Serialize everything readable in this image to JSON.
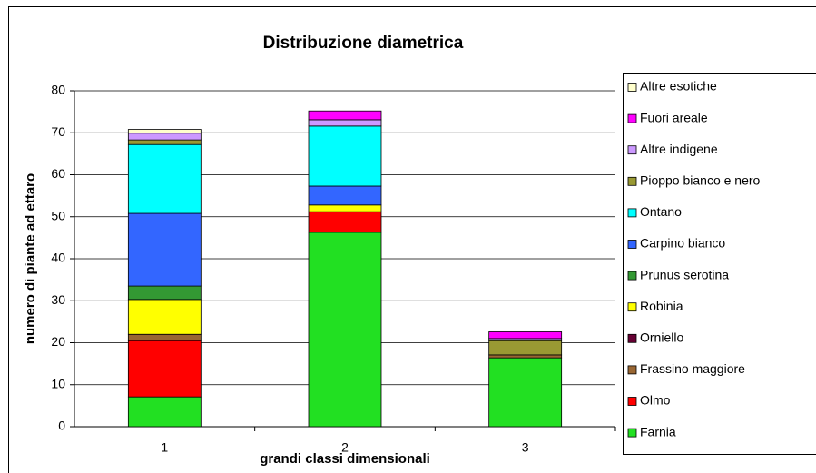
{
  "chart_data": {
    "type": "stacked_bar",
    "title": "Distribuzione diametrica",
    "x_label": "grandi classi dimensionali",
    "y_label": "numero di piante ad ettaro",
    "categories": [
      "1",
      "2",
      "3"
    ],
    "series": [
      {
        "name": "Farnia",
        "color": "#22e022",
        "values": [
          7.1,
          46.3,
          16.4
        ]
      },
      {
        "name": "Olmo",
        "color": "#ff0000",
        "values": [
          13.4,
          4.9,
          0
        ]
      },
      {
        "name": "Frassino maggiore",
        "color": "#996633",
        "values": [
          1.5,
          0,
          0.7
        ]
      },
      {
        "name": "Orniello",
        "color": "#660033",
        "values": [
          0,
          0,
          0
        ]
      },
      {
        "name": "Robinia",
        "color": "#ffff00",
        "values": [
          8.3,
          1.6,
          0
        ]
      },
      {
        "name": "Prunus serotina",
        "color": "#339933",
        "values": [
          3.2,
          0,
          0
        ]
      },
      {
        "name": "Carpino bianco",
        "color": "#3366ff",
        "values": [
          17.3,
          4.5,
          0
        ]
      },
      {
        "name": "Ontano",
        "color": "#00ffff",
        "values": [
          16.4,
          14.3,
          0
        ]
      },
      {
        "name": "Pioppo bianco e nero",
        "color": "#999933",
        "values": [
          1.1,
          0,
          3.4
        ]
      },
      {
        "name": "Altre indigene",
        "color": "#cc99ff",
        "values": [
          1.6,
          1.5,
          0.5
        ]
      },
      {
        "name": "Fuori areale",
        "color": "#ff00ff",
        "values": [
          0,
          2.1,
          1.6
        ]
      },
      {
        "name": "Altre esotiche",
        "color": "#ffffcc",
        "values": [
          0.9,
          0,
          0
        ]
      }
    ],
    "ylim": [
      0,
      80
    ],
    "yticks": [
      0,
      10,
      20,
      30,
      40,
      50,
      60,
      70,
      80
    ],
    "grid": true,
    "legend": "right"
  }
}
